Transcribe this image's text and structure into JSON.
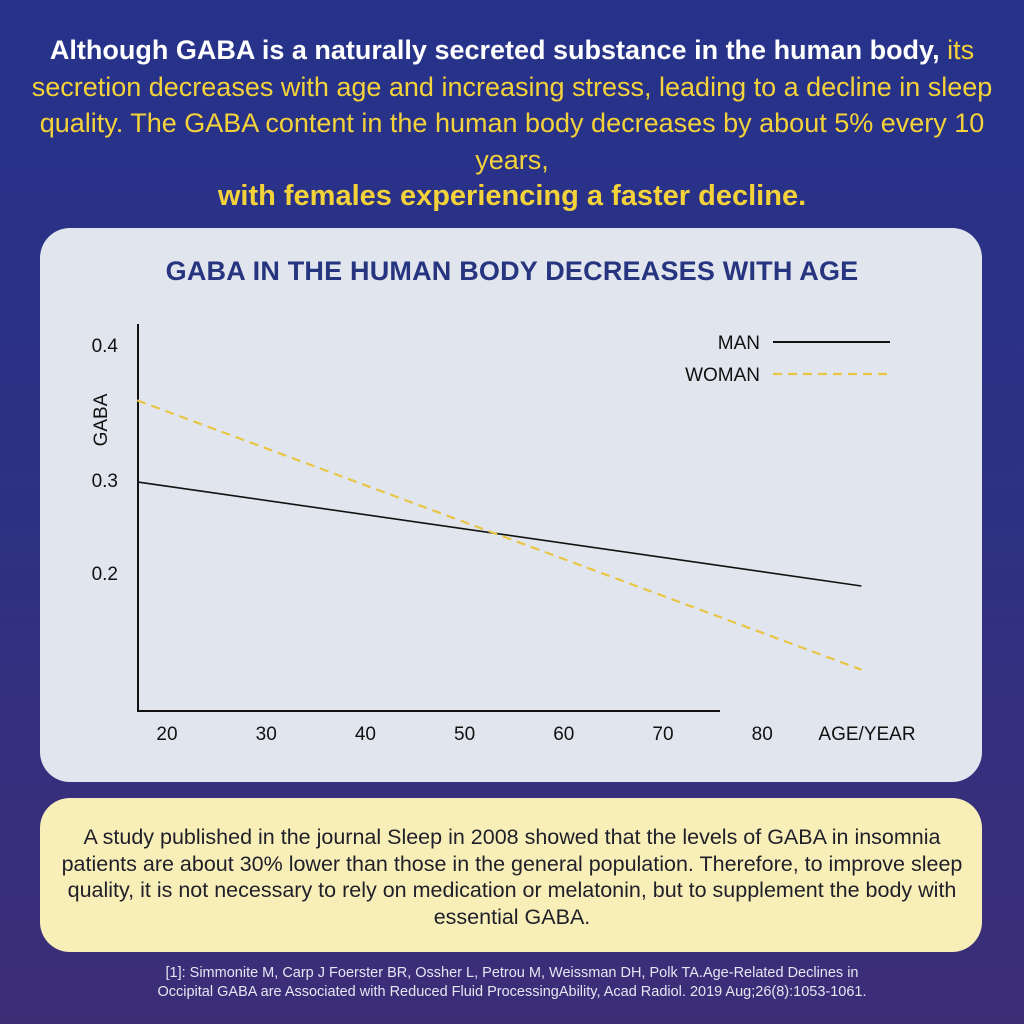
{
  "headline": {
    "part1": "Although GABA is a naturally secreted substance in the human body, ",
    "part2": "its secretion decreases with age and increasing stress, leading to a decline in sleep quality. The GABA content in the human body decreases by about 5% every 10 years,",
    "part3": "with females experiencing a faster decline."
  },
  "colors": {
    "accent": "#f4d23a",
    "title": "#27347f",
    "man": "#111111",
    "woman": "#e8c544"
  },
  "chart_data": {
    "type": "line",
    "title": "GABA IN THE HUMAN BODY DECREASES WITH AGE",
    "xlabel": "AGE/YEAR",
    "ylabel": "GABA",
    "x_ticks": [
      20,
      30,
      40,
      50,
      60,
      70,
      80
    ],
    "y_ticks": [
      "0.4",
      "0.3",
      "0.2"
    ],
    "xlim": [
      17,
      92
    ],
    "legend_position": "top-right",
    "series": [
      {
        "name": "MAN",
        "style": "solid",
        "x": [
          17,
          90
        ],
        "values": [
          0.298,
          0.186
        ]
      },
      {
        "name": "WOMAN",
        "style": "dashed",
        "x": [
          17,
          90
        ],
        "values": [
          0.359,
          0.096
        ]
      }
    ]
  },
  "note": "A study published in the journal Sleep in 2008 showed that the levels of GABA in insomnia patients are about 30% lower than those in the general population. Therefore, to improve sleep quality, it is not necessary to rely on medication or melatonin, but to supplement the body with essential GABA.",
  "reference": {
    "line1": "[1]: Simmonite M, Carp J   Foerster BR, Ossher L, Petrou M, Weissman DH, Polk TA.Age-Related Declines in",
    "line2": "Occipital GABA are Associated with Reduced Fluid ProcessingAbility, Acad Radiol. 2019 Aug;26(8):1053-1061."
  }
}
